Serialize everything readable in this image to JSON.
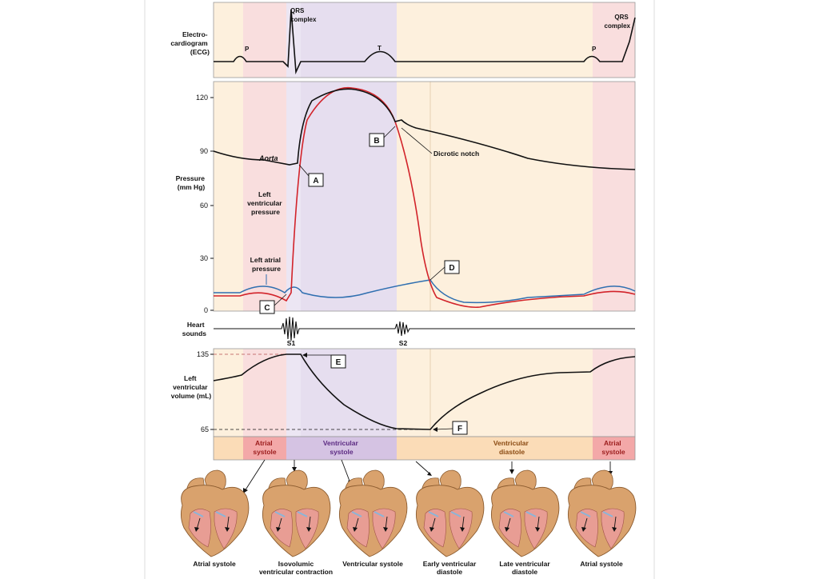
{
  "ecg": {
    "title": [
      "Electro-",
      "cardiogram",
      "(ECG)"
    ],
    "labels": {
      "p1": "P",
      "t": "T",
      "p2": "P",
      "qrs1": [
        "QRS",
        "complex"
      ],
      "qrs2": [
        "QRS",
        "complex"
      ]
    }
  },
  "pressure": {
    "axis_title": [
      "Pressure",
      "(mm Hg)"
    ],
    "ticks": [
      "0",
      "30",
      "60",
      "90",
      "120"
    ],
    "aorta_label": "Aorta",
    "lv_label": [
      "Left",
      "ventricular",
      "pressure"
    ],
    "la_label": [
      "Left atrial",
      "pressure"
    ],
    "dicrotic_label": "Dicrotic notch",
    "colors": {
      "aorta": "#111111",
      "lv": "#d2232a",
      "la": "#2f6fb0"
    }
  },
  "markers": {
    "a": "A",
    "b": "B",
    "c": "C",
    "d": "D",
    "e": "E",
    "f": "F"
  },
  "heart_sounds": {
    "title": [
      "Heart",
      "sounds"
    ],
    "s1": "S1",
    "s2": "S2"
  },
  "volume": {
    "axis_title": [
      "Left",
      "ventricular",
      "volume (mL)"
    ],
    "ticks": [
      "135",
      "65"
    ]
  },
  "phases": [
    {
      "label": [
        "Atrial",
        "systole"
      ]
    },
    {
      "label": [
        "Ventricular",
        "systole"
      ]
    },
    {
      "label": [
        "Ventricular",
        "diastole"
      ]
    },
    {
      "label": [
        "Atrial",
        "systole"
      ]
    }
  ],
  "hearts": [
    {
      "caption": [
        "Atrial systole"
      ]
    },
    {
      "caption": [
        "Isovolumic",
        "ventricular contraction"
      ]
    },
    {
      "caption": [
        "Ventricular systole"
      ]
    },
    {
      "caption": [
        "Early ventricular",
        "diastole"
      ]
    },
    {
      "caption": [
        "Late ventricular",
        "diastole"
      ]
    },
    {
      "caption": [
        "Atrial systole"
      ]
    }
  ],
  "colors": {
    "band_diastole": "#fdf0dd",
    "band_atrial": "#f9dede",
    "band_isovolumic": "#ece6f3",
    "band_systole": "#e6deef",
    "phase_diastole": "#fbdcb7",
    "phase_atrial": "#f3a8a8",
    "phase_systole": "#d5c3e3",
    "heart_tissue": "#d9a26d",
    "heart_muscle": "#e89d94"
  }
}
